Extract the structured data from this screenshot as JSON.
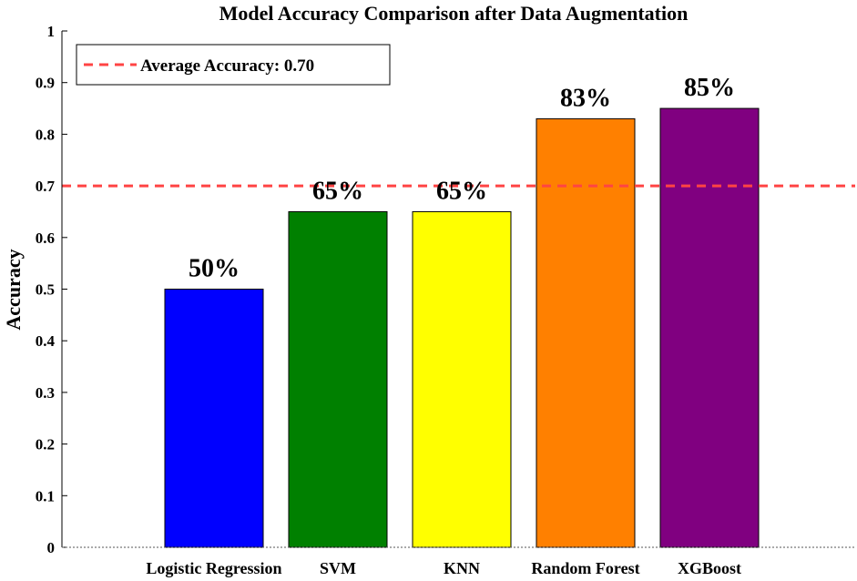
{
  "chart_data": {
    "type": "bar",
    "title": "Model Accuracy Comparison after Data Augmentation",
    "xlabel": "",
    "ylabel": "Accuracy",
    "categories": [
      "Logistic Regression",
      "SVM",
      "KNN",
      "Random Forest",
      "XGBoost"
    ],
    "values": [
      0.5,
      0.65,
      0.65,
      0.83,
      0.85
    ],
    "data_labels": [
      "50%",
      "65%",
      "65%",
      "83%",
      "85%"
    ],
    "colors": [
      "#0000ff",
      "#008000",
      "#ffff00",
      "#ff8000",
      "#800080"
    ],
    "ylim": [
      0,
      1
    ],
    "yticks": [
      0,
      0.1,
      0.2,
      0.3,
      0.4,
      0.5,
      0.6,
      0.7,
      0.8,
      0.9,
      1
    ],
    "ytick_labels": [
      "0",
      "0.1",
      "0.2",
      "0.3",
      "0.4",
      "0.5",
      "0.6",
      "0.7",
      "0.8",
      "0.9",
      "1"
    ],
    "reference_line": {
      "value": 0.7,
      "label": "Average Accuracy: 0.70",
      "color": "#ff4444",
      "style": "dashed"
    },
    "legend": {
      "placement": "top-left",
      "entries": [
        "Average Accuracy: 0.70"
      ]
    },
    "grid": false
  }
}
